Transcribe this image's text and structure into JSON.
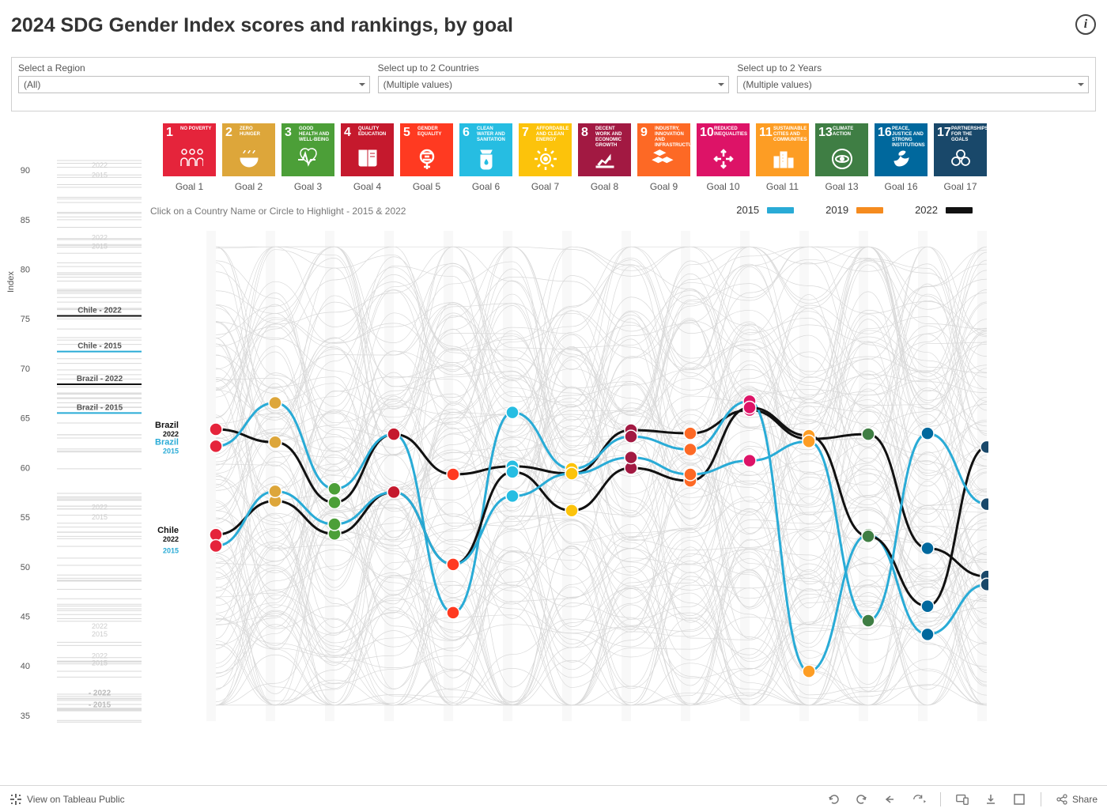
{
  "title": "2024 SDG Gender Index scores and rankings, by goal",
  "filters": {
    "region": {
      "label": "Select a Region",
      "value": "(All)"
    },
    "country": {
      "label": "Select up to 2 Countries",
      "value": "(Multiple values)"
    },
    "year": {
      "label": "Select up to 2 Years",
      "value": "(Multiple values)"
    }
  },
  "sdg_goals": [
    {
      "num": 1,
      "label": "Goal 1",
      "name": "NO POVERTY",
      "color": "#e5243b",
      "icon": "people"
    },
    {
      "num": 2,
      "label": "Goal 2",
      "name": "ZERO HUNGER",
      "color": "#dda63a",
      "icon": "bowl"
    },
    {
      "num": 3,
      "label": "Goal 3",
      "name": "GOOD HEALTH AND WELL-BEING",
      "color": "#4c9f38",
      "icon": "heartbeat"
    },
    {
      "num": 4,
      "label": "Goal 4",
      "name": "QUALITY EDUCATION",
      "color": "#c5192d",
      "icon": "book"
    },
    {
      "num": 5,
      "label": "Goal 5",
      "name": "GENDER EQUALITY",
      "color": "#ff3a21",
      "icon": "gender"
    },
    {
      "num": 6,
      "label": "Goal 6",
      "name": "CLEAN WATER AND SANITATION",
      "color": "#26bde2",
      "icon": "water"
    },
    {
      "num": 7,
      "label": "Goal 7",
      "name": "AFFORDABLE AND CLEAN ENERGY",
      "color": "#fcc30b",
      "icon": "sun"
    },
    {
      "num": 8,
      "label": "Goal 8",
      "name": "DECENT WORK AND ECONOMIC GROWTH",
      "color": "#a21942",
      "icon": "growth"
    },
    {
      "num": 9,
      "label": "Goal 9",
      "name": "INDUSTRY, INNOVATION AND INFRASTRUCTURE",
      "color": "#fd6925",
      "icon": "cubes"
    },
    {
      "num": 10,
      "label": "Goal 10",
      "name": "REDUCED INEQUALITIES",
      "color": "#dd1367",
      "icon": "arrows"
    },
    {
      "num": 11,
      "label": "Goal 11",
      "name": "SUSTAINABLE CITIES AND COMMUNITIES",
      "color": "#fd9d24",
      "icon": "city"
    },
    {
      "num": 13,
      "label": "Goal 13",
      "name": "CLIMATE ACTION",
      "color": "#3f7e44",
      "icon": "eye"
    },
    {
      "num": 16,
      "label": "Goal 16",
      "name": "PEACE, JUSTICE AND STRONG INSTITUTIONS",
      "color": "#00689d",
      "icon": "dove"
    },
    {
      "num": 17,
      "label": "Goal 17",
      "name": "PARTNERSHIPS FOR THE GOALS",
      "color": "#19486a",
      "icon": "rings"
    }
  ],
  "subtitle": "Click on a Country Name or Circle to Highlight - 2015 & 2022",
  "year_legend": [
    {
      "label": "2015",
      "color": "#29abd6"
    },
    {
      "label": "2019",
      "color": "#f58b1f"
    },
    {
      "label": "2022",
      "color": "#111111"
    }
  ],
  "y_axis": {
    "label": "Index",
    "min": 33,
    "max": 92,
    "ticks": [
      35,
      40,
      45,
      50,
      55,
      60,
      65,
      70,
      75,
      80,
      85,
      90
    ],
    "fontsize": 11,
    "color": "#555"
  },
  "left_markers": [
    {
      "label": "Chile - 2022",
      "value": 75.3,
      "text_color": "#555",
      "line_color": "#111"
    },
    {
      "label": "Chile - 2015",
      "value": 71.7,
      "text_color": "#555",
      "line_color": "#29abd6"
    },
    {
      "label": "Brazil - 2022",
      "value": 68.4,
      "text_color": "#555",
      "line_color": "#111"
    },
    {
      "label": "Brazil - 2015",
      "value": 65.5,
      "text_color": "#555",
      "line_color": "#29abd6"
    },
    {
      "label": "- 2022",
      "value": 36.7,
      "text_color": "#bbb",
      "line_color": "#ddd"
    },
    {
      "label": "- 2015",
      "value": 35.5,
      "text_color": "#bbb",
      "line_color": "#ddd"
    }
  ],
  "left_ghost_labels": [
    {
      "text": "2022",
      "value": 90.5
    },
    {
      "text": "2015",
      "value": 89.5
    },
    {
      "text": "2022",
      "value": 83.2
    },
    {
      "text": "2015",
      "value": 82.3
    },
    {
      "text": "2022",
      "value": 56.0
    },
    {
      "text": "2015",
      "value": 55.0
    },
    {
      "text": "2022",
      "value": 44.0
    },
    {
      "text": "2015",
      "value": 43.2
    },
    {
      "text": "2022",
      "value": 41.0
    },
    {
      "text": "2015",
      "value": 40.3
    }
  ],
  "series_labels": [
    {
      "text": "Brazil",
      "sub": "2022",
      "x": -20,
      "y": 68.3,
      "color": "#111"
    },
    {
      "text": "Brazil",
      "sub": "2015",
      "x": -20,
      "y": 66.2,
      "color": "#29abd6"
    },
    {
      "text": "Chile",
      "sub": "2022",
      "x": -20,
      "y": 55.2,
      "color": "#111"
    },
    {
      "text": "",
      "sub": "2015",
      "x": -20,
      "y": 53.8,
      "color": "#29abd6"
    }
  ],
  "lines": [
    {
      "name": "Brazil-2022",
      "color": "#111111",
      "width": 3,
      "values": [
        68.3,
        66.7,
        59.2,
        67.7,
        62.7,
        63.7,
        62.8,
        68.2,
        67.8,
        70.7,
        67.1,
        67.7,
        53.5,
        50.0
      ]
    },
    {
      "name": "Brazil-2015",
      "color": "#29abd6",
      "width": 3,
      "values": [
        66.2,
        71.6,
        60.9,
        67.7,
        45.5,
        70.4,
        63.4,
        67.4,
        65.8,
        71.8,
        38.2,
        55.2,
        42.8,
        49.0
      ]
    },
    {
      "name": "Chile-2022",
      "color": "#111111",
      "width": 3,
      "values": [
        55.2,
        59.4,
        55.3,
        60.5,
        51.5,
        63.0,
        58.2,
        63.5,
        61.9,
        71.0,
        67.5,
        55.0,
        46.3,
        66.1
      ]
    },
    {
      "name": "Chile-2015",
      "color": "#29abd6",
      "width": 3,
      "values": [
        53.8,
        60.6,
        56.5,
        60.5,
        51.5,
        60.0,
        62.8,
        64.8,
        62.7,
        64.4,
        66.8,
        44.5,
        67.8,
        59.0
      ]
    }
  ],
  "styling": {
    "background_color": "#ffffff",
    "ghost_line_color": "#d9d9d9",
    "ghost_line_width": 0.7,
    "marker_radius": 8,
    "marker_stroke": "#ffffff",
    "marker_stroke_width": 1.5,
    "band_color": "#f2f2f2",
    "band_opacity": 0.5,
    "chart_aspect": "wide",
    "fontsize_axis": 11
  },
  "toolbar": {
    "tableau_text": "View on Tableau Public",
    "share_text": "Share"
  }
}
